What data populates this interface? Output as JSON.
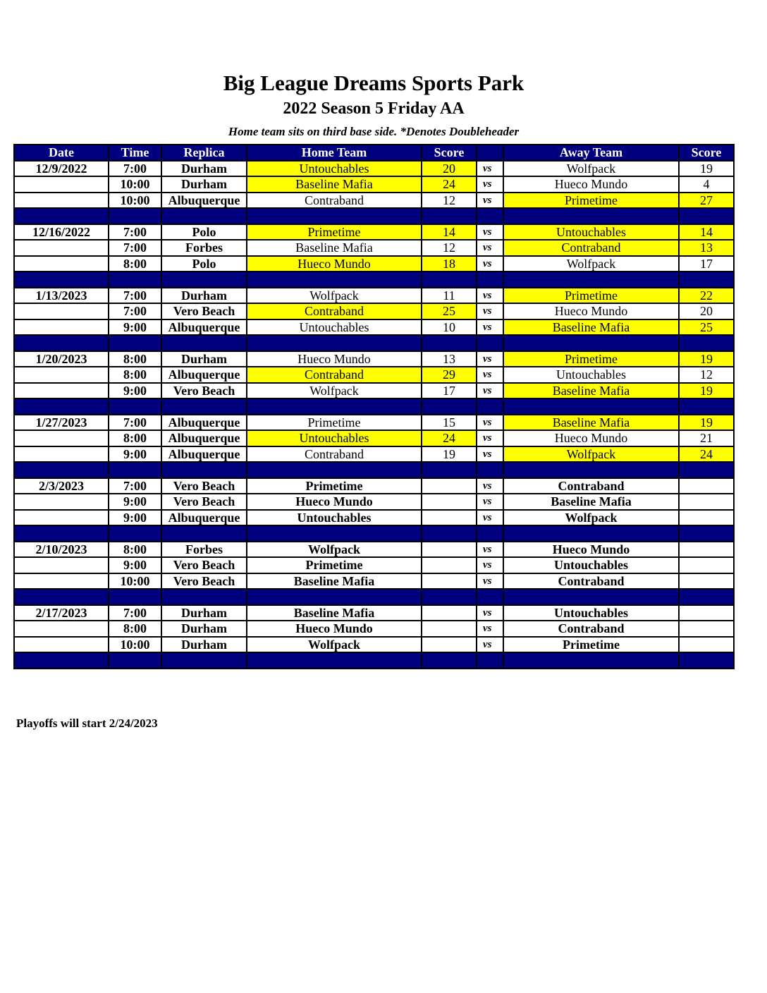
{
  "title": "Big League Dreams Sports Park",
  "subtitle": "2022 Season 5 Friday AA",
  "note": "Home team sits on third base side.  *Denotes Doubleheader",
  "headers": [
    "Date",
    "Time",
    "Replica",
    "Home Team",
    "Score",
    "",
    "Away Team",
    "Score"
  ],
  "vs_label": "vs",
  "highlight_color": "#ffff00",
  "header_color": "#00007f",
  "weeks": [
    {
      "date": "12/9/2022",
      "games": [
        {
          "time": "7:00",
          "replica": "Durham",
          "home": "Untouchables",
          "home_score": "20",
          "away": "Wolfpack",
          "away_score": "19",
          "winner": "home"
        },
        {
          "time": "10:00",
          "replica": "Durham",
          "home": "Baseline Mafia",
          "home_score": "24",
          "away": "Hueco Mundo",
          "away_score": "4",
          "winner": "home"
        },
        {
          "time": "10:00",
          "replica": "Albuquerque",
          "home": "Contraband",
          "home_score": "12",
          "away": "Primetime",
          "away_score": "27",
          "winner": "away"
        }
      ]
    },
    {
      "date": "12/16/2022",
      "games": [
        {
          "time": "7:00",
          "replica": "Polo",
          "home": "Primetime",
          "home_score": "14",
          "away": "Untouchables",
          "away_score": "14",
          "winner": "both"
        },
        {
          "time": "7:00",
          "replica": "Forbes",
          "home": "Baseline Mafia",
          "home_score": "12",
          "away": "Contraband",
          "away_score": "13",
          "winner": "away"
        },
        {
          "time": "8:00",
          "replica": "Polo",
          "home": "Hueco Mundo",
          "home_score": "18",
          "away": "Wolfpack",
          "away_score": "17",
          "winner": "home"
        }
      ]
    },
    {
      "date": "1/13/2023",
      "games": [
        {
          "time": "7:00",
          "replica": "Durham",
          "home": "Wolfpack",
          "home_score": "11",
          "away": "Primetime",
          "away_score": "22",
          "winner": "away"
        },
        {
          "time": "7:00",
          "replica": "Vero Beach",
          "home": "Contraband",
          "home_score": "25",
          "away": "Hueco Mundo",
          "away_score": "20",
          "winner": "home"
        },
        {
          "time": "9:00",
          "replica": "Albuquerque",
          "home": "Untouchables",
          "home_score": "10",
          "away": "Baseline Mafia",
          "away_score": "25",
          "winner": "away"
        }
      ]
    },
    {
      "date": "1/20/2023",
      "games": [
        {
          "time": "8:00",
          "replica": "Durham",
          "home": "Hueco Mundo",
          "home_score": "13",
          "away": "Primetime",
          "away_score": "19",
          "winner": "away"
        },
        {
          "time": "8:00",
          "replica": "Albuquerque",
          "home": "Contraband",
          "home_score": "29",
          "away": "Untouchables",
          "away_score": "12",
          "winner": "home"
        },
        {
          "time": "9:00",
          "replica": "Vero Beach",
          "home": "Wolfpack",
          "home_score": "17",
          "away": "Baseline Mafia",
          "away_score": "19",
          "winner": "away"
        }
      ]
    },
    {
      "date": "1/27/2023",
      "games": [
        {
          "time": "7:00",
          "replica": "Albuquerque",
          "home": "Primetime",
          "home_score": "15",
          "away": "Baseline Mafia",
          "away_score": "19",
          "winner": "away"
        },
        {
          "time": "8:00",
          "replica": "Albuquerque",
          "home": "Untouchables",
          "home_score": "24",
          "away": "Hueco Mundo",
          "away_score": "21",
          "winner": "home"
        },
        {
          "time": "9:00",
          "replica": "Albuquerque",
          "home": "Contraband",
          "home_score": "19",
          "away": "Wolfpack",
          "away_score": "24",
          "winner": "away"
        }
      ]
    },
    {
      "date": "2/3/2023",
      "games": [
        {
          "time": "7:00",
          "replica": "Vero Beach",
          "home": "Primetime",
          "home_score": "",
          "away": "Contraband",
          "away_score": "",
          "winner": ""
        },
        {
          "time": "9:00",
          "replica": "Vero Beach",
          "home": "Hueco Mundo",
          "home_score": "",
          "away": "Baseline Mafia",
          "away_score": "",
          "winner": ""
        },
        {
          "time": "9:00",
          "replica": "Albuquerque",
          "home": "Untouchables",
          "home_score": "",
          "away": "Wolfpack",
          "away_score": "",
          "winner": ""
        }
      ]
    },
    {
      "date": "2/10/2023",
      "games": [
        {
          "time": "8:00",
          "replica": "Forbes",
          "home": "Wolfpack",
          "home_score": "",
          "away": "Hueco Mundo",
          "away_score": "",
          "winner": ""
        },
        {
          "time": "9:00",
          "replica": "Vero Beach",
          "home": "Primetime",
          "home_score": "",
          "away": "Untouchables",
          "away_score": "",
          "winner": ""
        },
        {
          "time": "10:00",
          "replica": "Vero Beach",
          "home": "Baseline Mafia",
          "home_score": "",
          "away": "Contraband",
          "away_score": "",
          "winner": ""
        }
      ]
    },
    {
      "date": "2/17/2023",
      "games": [
        {
          "time": "7:00",
          "replica": "Durham",
          "home": "Baseline Mafia",
          "home_score": "",
          "away": "Untouchables",
          "away_score": "",
          "winner": ""
        },
        {
          "time": "8:00",
          "replica": "Durham",
          "home": "Hueco Mundo",
          "home_score": "",
          "away": "Contraband",
          "away_score": "",
          "winner": ""
        },
        {
          "time": "10:00",
          "replica": "Durham",
          "home": "Wolfpack",
          "home_score": "",
          "away": "Primetime",
          "away_score": "",
          "winner": ""
        }
      ]
    }
  ],
  "footer": "Playoffs will start 2/24/2023"
}
